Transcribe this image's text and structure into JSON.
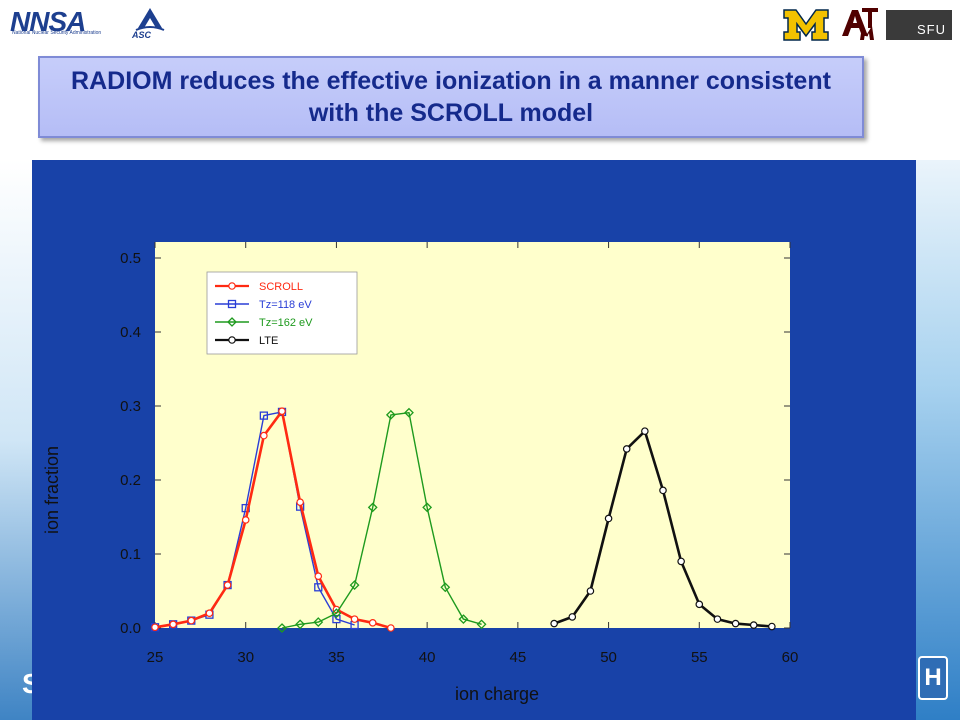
{
  "header": {
    "logos": {
      "nnsa": "NNSA",
      "nnsa_subtitle": "National Nuclear Security Administration",
      "asc": "ASC",
      "sfu": "SFU"
    }
  },
  "slide": {
    "title": "RADIOM reduces the effective ionization in a manner consistent with the SCROLL model"
  },
  "chart_data": {
    "type": "line",
    "xlabel": "ion charge",
    "ylabel": "ion fraction",
    "xlim": [
      25,
      60
    ],
    "ylim": [
      0,
      0.5
    ],
    "xticks": [
      "25",
      "30",
      "35",
      "40",
      "45",
      "50",
      "55",
      "60"
    ],
    "yticks": [
      "0.0",
      "0.1",
      "0.2",
      "0.3",
      "0.4",
      "0.5"
    ],
    "legend_position": "top-left",
    "plot_background": "#ffffcc",
    "series": [
      {
        "name": "SCROLL",
        "color": "#ff2a12",
        "marker": "circle",
        "x": [
          25,
          26,
          27,
          28,
          29,
          30,
          31,
          32,
          33,
          34,
          35,
          36,
          37,
          38
        ],
        "y": [
          0.001,
          0.005,
          0.01,
          0.02,
          0.058,
          0.146,
          0.26,
          0.293,
          0.17,
          0.07,
          0.025,
          0.012,
          0.007,
          0.0
        ]
      },
      {
        "name": "Tz=118 eV",
        "color": "#2a3ed6",
        "marker": "square",
        "x": [
          25,
          26,
          27,
          28,
          29,
          30,
          31,
          32,
          33,
          34,
          35,
          36
        ],
        "y": [
          0.001,
          0.005,
          0.01,
          0.018,
          0.058,
          0.162,
          0.287,
          0.292,
          0.164,
          0.055,
          0.012,
          0.004
        ]
      },
      {
        "name": "Tz=162 eV",
        "color": "#1e9a1e",
        "marker": "diamond",
        "x": [
          32,
          33,
          34,
          35,
          36,
          37,
          38,
          39,
          40,
          41,
          42,
          43
        ],
        "y": [
          0.0,
          0.005,
          0.008,
          0.02,
          0.058,
          0.163,
          0.288,
          0.291,
          0.163,
          0.055,
          0.012,
          0.005
        ]
      },
      {
        "name": "LTE",
        "color": "#111111",
        "marker": "circle",
        "x": [
          47,
          48,
          49,
          50,
          51,
          52,
          53,
          54,
          55,
          56,
          57,
          58,
          59
        ],
        "y": [
          0.006,
          0.015,
          0.05,
          0.148,
          0.242,
          0.266,
          0.186,
          0.09,
          0.032,
          0.012,
          0.006,
          0.004,
          0.002
        ]
      }
    ]
  }
}
